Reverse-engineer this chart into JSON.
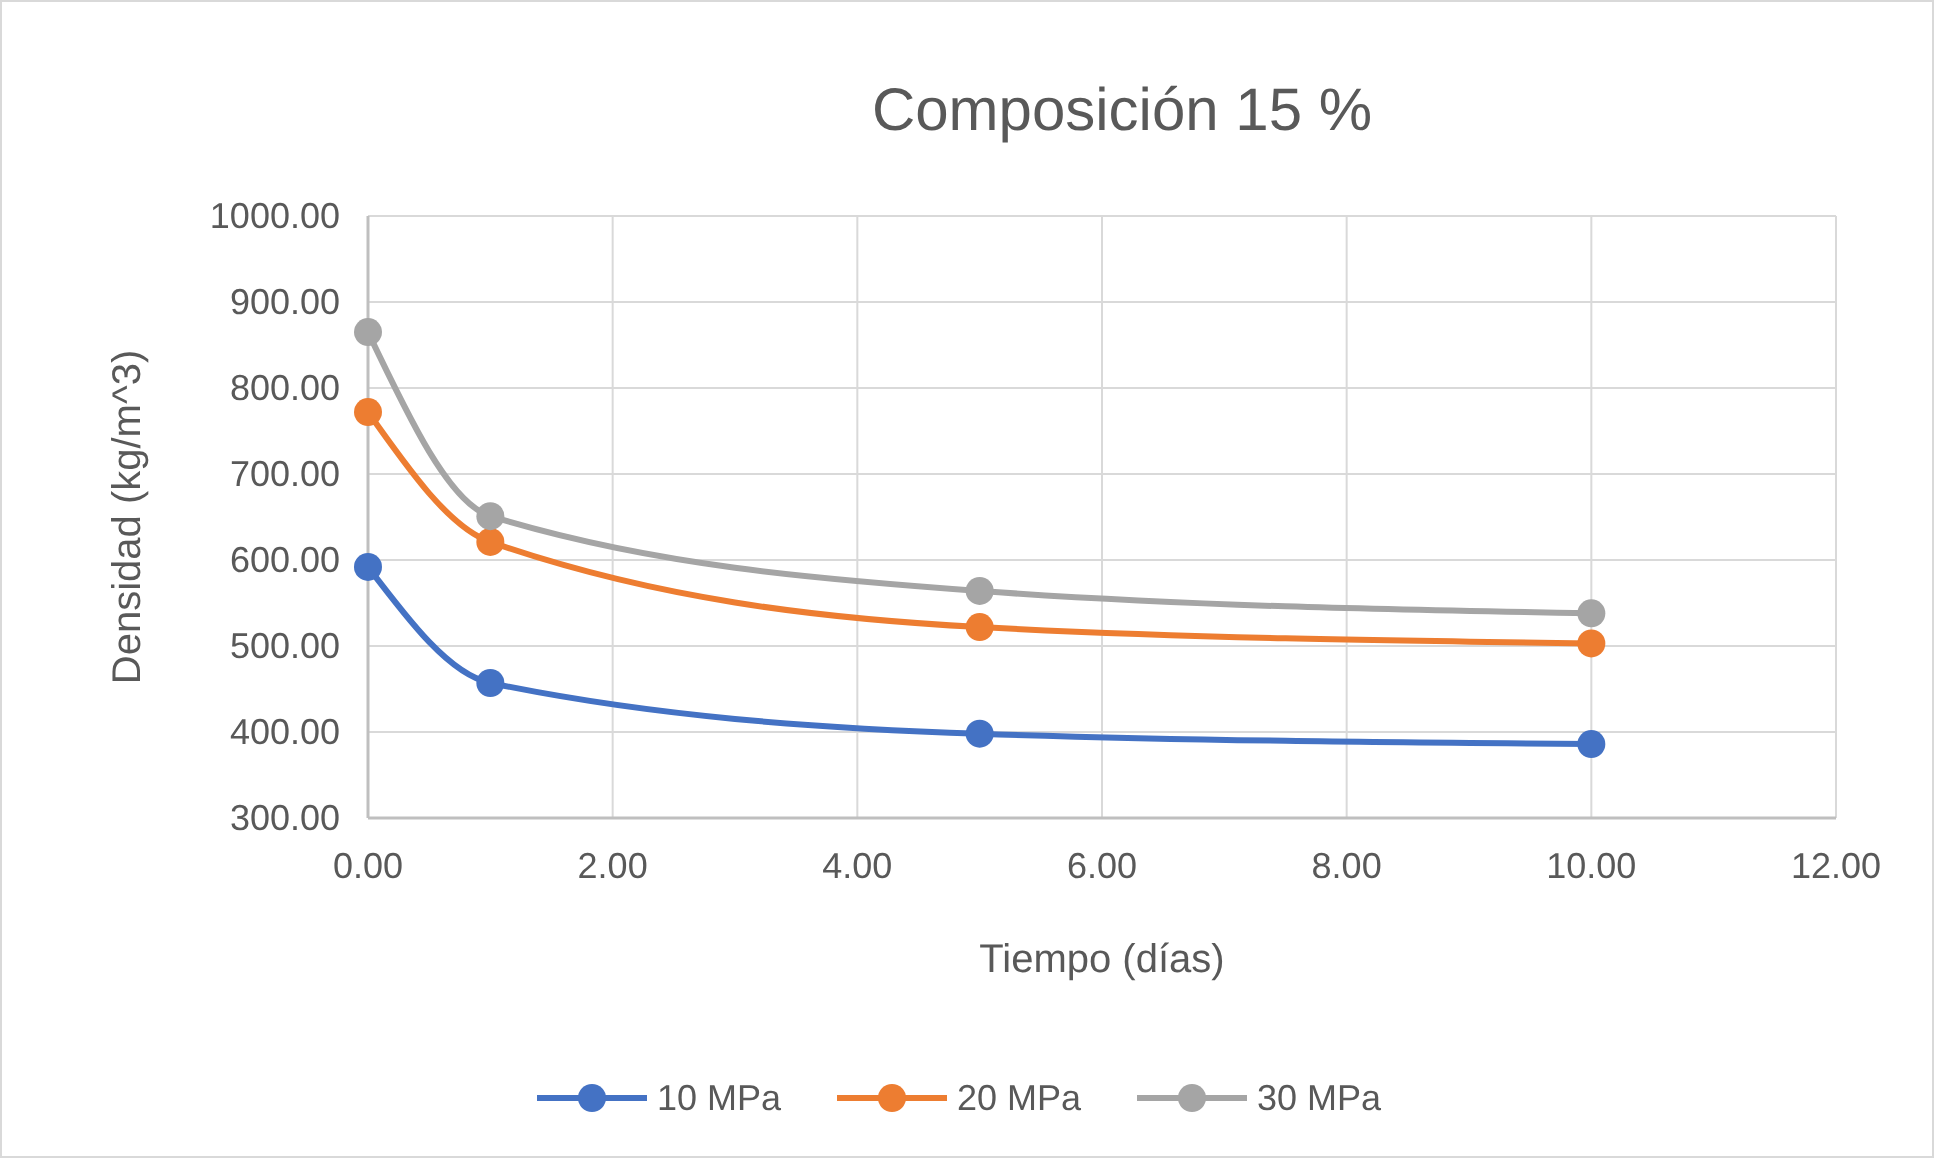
{
  "chart_data": {
    "type": "line",
    "title": "Composición 15 %",
    "xlabel": "Tiempo (días)",
    "ylabel": "Densidad (kg/m^3)",
    "x": [
      0,
      1,
      5,
      10
    ],
    "series": [
      {
        "name": "10 MPa",
        "color": "#4472c4",
        "values": [
          592,
          457,
          398,
          386
        ]
      },
      {
        "name": "20 MPa",
        "color": "#ed7d31",
        "values": [
          772,
          621,
          522,
          503
        ]
      },
      {
        "name": "30 MPa",
        "color": "#a5a5a5",
        "values": [
          865,
          651,
          564,
          538
        ]
      }
    ],
    "xlim": [
      0,
      12
    ],
    "xticks": [
      {
        "value": 0,
        "label": "0.00"
      },
      {
        "value": 2,
        "label": "2.00"
      },
      {
        "value": 4,
        "label": "4.00"
      },
      {
        "value": 6,
        "label": "6.00"
      },
      {
        "value": 8,
        "label": "8.00"
      },
      {
        "value": 10,
        "label": "10.00"
      },
      {
        "value": 12,
        "label": "12.00"
      }
    ],
    "ylim": [
      300,
      1000
    ],
    "yticks": [
      {
        "value": 300,
        "label": "300.00"
      },
      {
        "value": 400,
        "label": "400.00"
      },
      {
        "value": 500,
        "label": "500.00"
      },
      {
        "value": 600,
        "label": "600.00"
      },
      {
        "value": 700,
        "label": "700.00"
      },
      {
        "value": 800,
        "label": "800.00"
      },
      {
        "value": 900,
        "label": "900.00"
      },
      {
        "value": 1000,
        "label": "1000.00"
      }
    ],
    "grid": true,
    "legend": "bottom",
    "marker": "circle",
    "line_style": "solid"
  }
}
